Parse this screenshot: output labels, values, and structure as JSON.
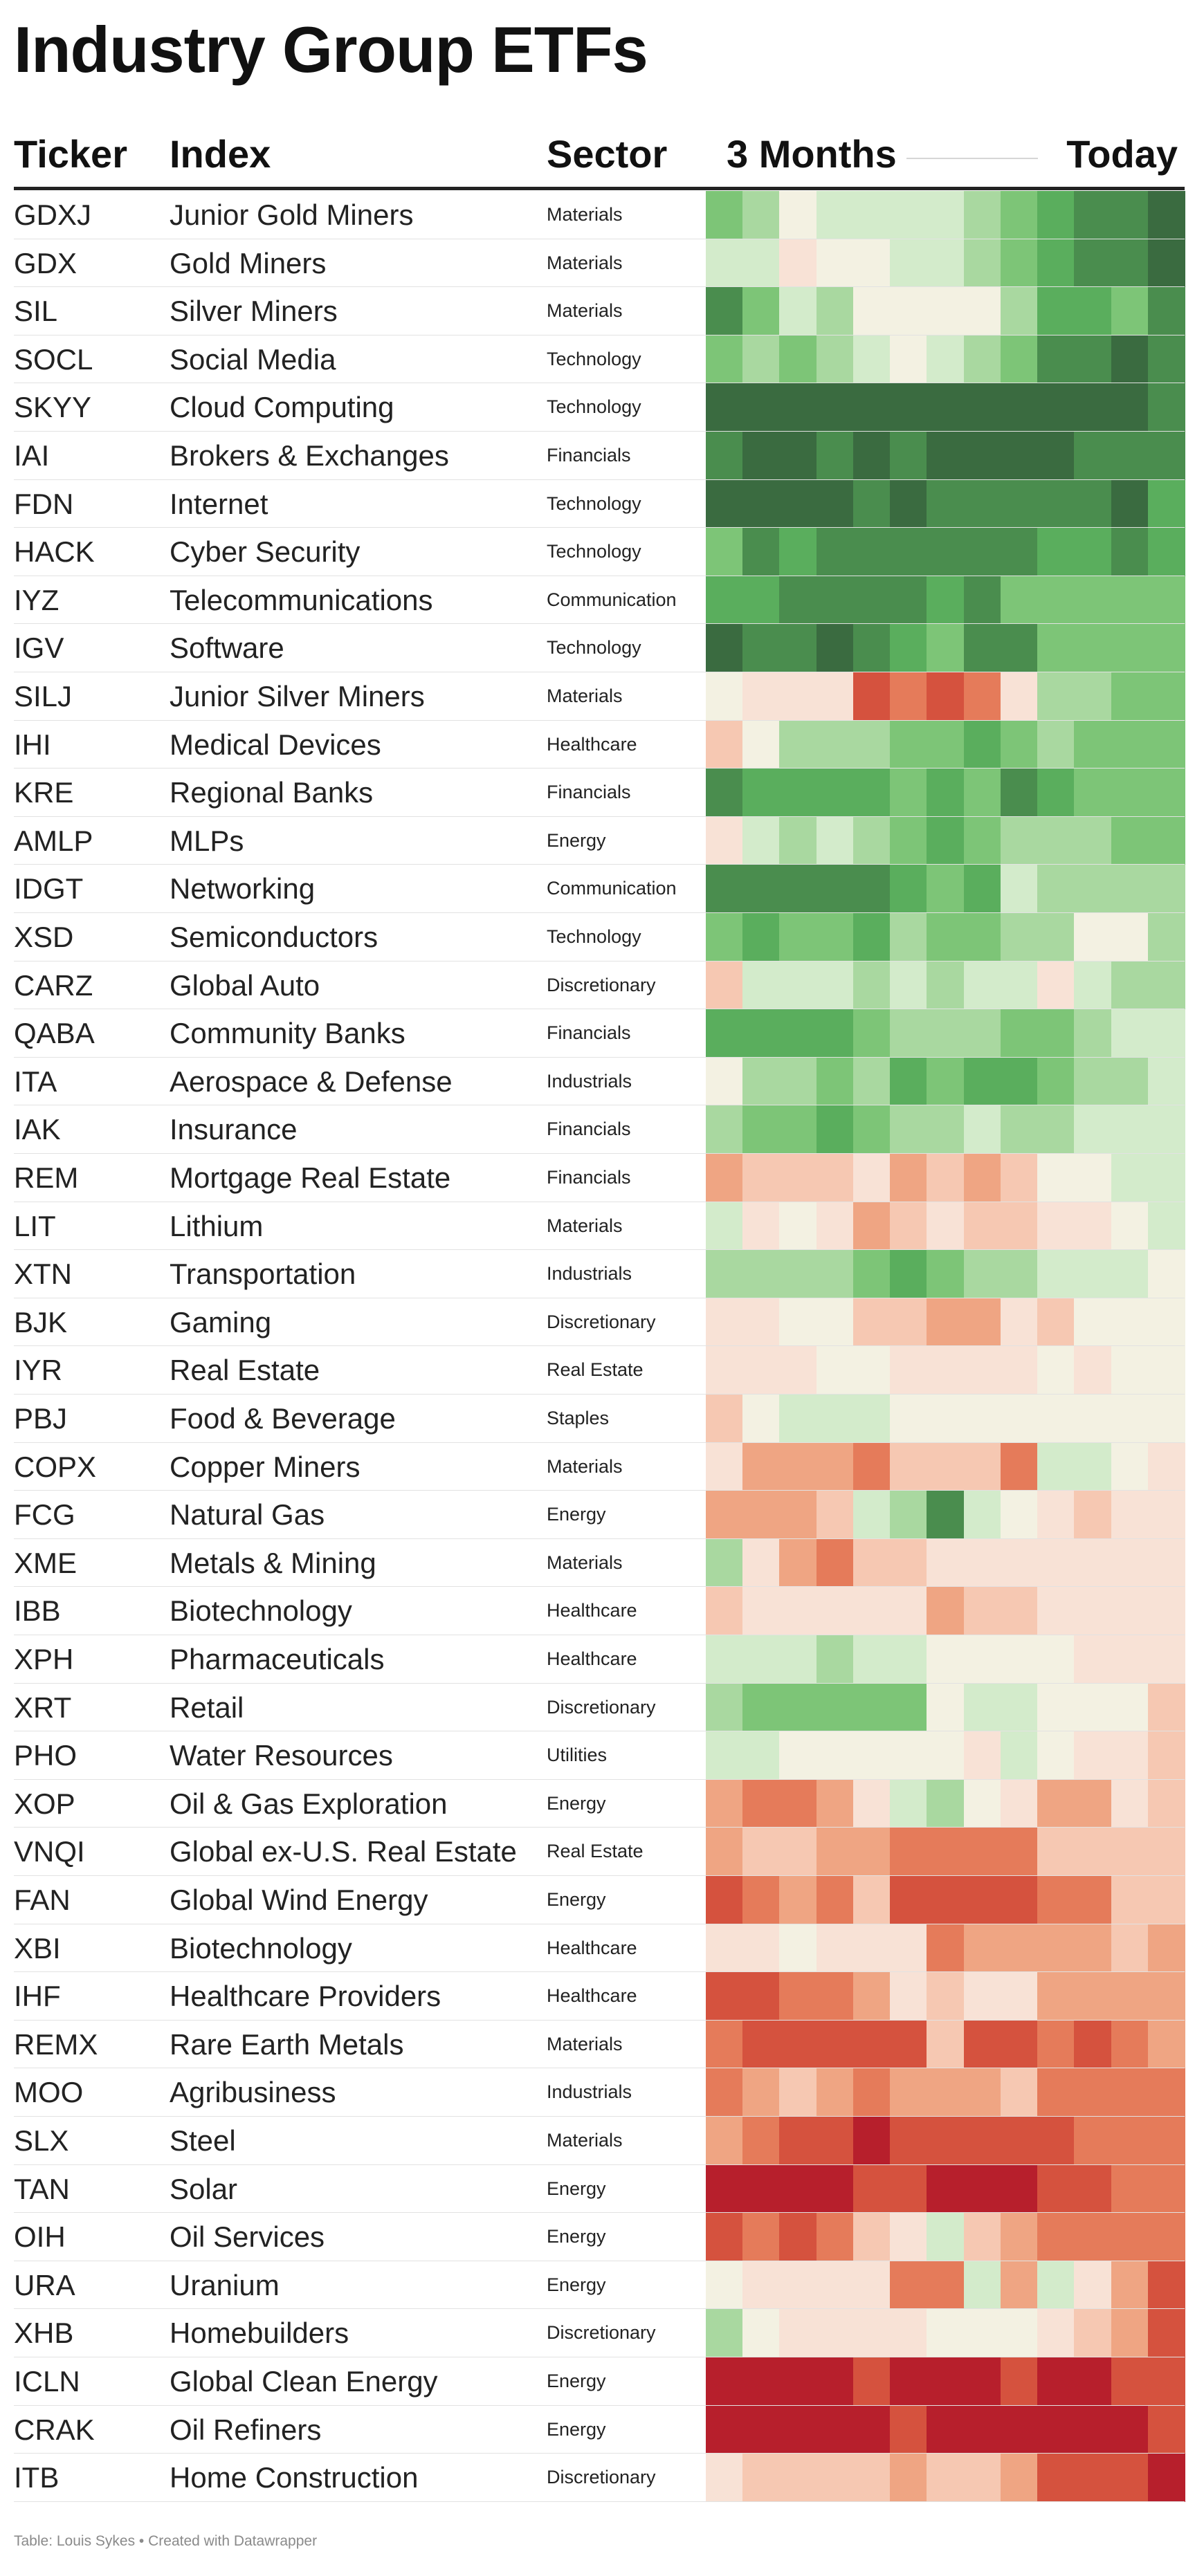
{
  "title": "Industry Group ETFs",
  "columns": {
    "ticker": "Ticker",
    "index": "Index",
    "sector": "Sector",
    "heat_start": "3 Months",
    "heat_end": "Today"
  },
  "footer": "Table: Louis Sykes • Created with Datawrapper",
  "colors": {
    "G5": "#3a6b40",
    "G4": "#4a8d4e",
    "G3": "#5aae5d",
    "G2": "#7dc577",
    "G1": "#a9d8a0",
    "G0": "#d3ebcb",
    "N": "#f3f1e2",
    "R0": "#f8e2d6",
    "R1": "#f6c8b2",
    "R2": "#efa583",
    "R3": "#e57b5a",
    "R4": "#d5523e",
    "R5": "#b71f2c"
  },
  "chart_data": {
    "type": "heatmap",
    "title": "Industry Group ETFs",
    "scale": [
      "G5",
      "G4",
      "G3",
      "G2",
      "G1",
      "G0",
      "N",
      "R0",
      "R1",
      "R2",
      "R3",
      "R4",
      "R5"
    ],
    "rows": [
      {
        "ticker": "GDXJ",
        "index": "Junior Gold Miners",
        "sector": "Materials",
        "cells": [
          "G2",
          "G1",
          "N",
          "G0",
          "G0",
          "G0",
          "G0",
          "G1",
          "G2",
          "G3",
          "G4",
          "G4",
          "G5"
        ]
      },
      {
        "ticker": "GDX",
        "index": "Gold Miners",
        "sector": "Materials",
        "cells": [
          "G0",
          "G0",
          "R0",
          "N",
          "N",
          "G0",
          "G0",
          "G1",
          "G2",
          "G3",
          "G4",
          "G4",
          "G5"
        ]
      },
      {
        "ticker": "SIL",
        "index": "Silver Miners",
        "sector": "Materials",
        "cells": [
          "G4",
          "G2",
          "G0",
          "G1",
          "N",
          "N",
          "N",
          "N",
          "G1",
          "G3",
          "G3",
          "G2",
          "G4"
        ]
      },
      {
        "ticker": "SOCL",
        "index": "Social Media",
        "sector": "Technology",
        "cells": [
          "G2",
          "G1",
          "G2",
          "G1",
          "G0",
          "N",
          "G0",
          "G1",
          "G2",
          "G4",
          "G4",
          "G5",
          "G4"
        ]
      },
      {
        "ticker": "SKYY",
        "index": "Cloud Computing",
        "sector": "Technology",
        "cells": [
          "G5",
          "G5",
          "G5",
          "G5",
          "G5",
          "G5",
          "G5",
          "G5",
          "G5",
          "G5",
          "G5",
          "G5",
          "G4"
        ]
      },
      {
        "ticker": "IAI",
        "index": "Brokers & Exchanges",
        "sector": "Financials",
        "cells": [
          "G4",
          "G5",
          "G5",
          "G4",
          "G5",
          "G4",
          "G5",
          "G5",
          "G5",
          "G5",
          "G4",
          "G4",
          "G4"
        ]
      },
      {
        "ticker": "FDN",
        "index": "Internet",
        "sector": "Technology",
        "cells": [
          "G5",
          "G5",
          "G5",
          "G5",
          "G4",
          "G5",
          "G4",
          "G4",
          "G4",
          "G4",
          "G4",
          "G5",
          "G3"
        ]
      },
      {
        "ticker": "HACK",
        "index": "Cyber Security",
        "sector": "Technology",
        "cells": [
          "G2",
          "G4",
          "G3",
          "G4",
          "G4",
          "G4",
          "G4",
          "G4",
          "G4",
          "G3",
          "G3",
          "G4",
          "G3"
        ]
      },
      {
        "ticker": "IYZ",
        "index": "Telecommunications",
        "sector": "Communication",
        "cells": [
          "G3",
          "G3",
          "G4",
          "G4",
          "G4",
          "G4",
          "G3",
          "G4",
          "G2",
          "G2",
          "G2",
          "G2",
          "G2"
        ]
      },
      {
        "ticker": "IGV",
        "index": "Software",
        "sector": "Technology",
        "cells": [
          "G5",
          "G4",
          "G4",
          "G5",
          "G4",
          "G3",
          "G2",
          "G4",
          "G4",
          "G2",
          "G2",
          "G2",
          "G2"
        ]
      },
      {
        "ticker": "SILJ",
        "index": "Junior Silver Miners",
        "sector": "Materials",
        "cells": [
          "N",
          "R0",
          "R0",
          "R0",
          "R4",
          "R3",
          "R4",
          "R3",
          "R0",
          "G1",
          "G1",
          "G2",
          "G2"
        ]
      },
      {
        "ticker": "IHI",
        "index": "Medical Devices",
        "sector": "Healthcare",
        "cells": [
          "R1",
          "N",
          "G1",
          "G1",
          "G1",
          "G2",
          "G2",
          "G3",
          "G2",
          "G1",
          "G2",
          "G2",
          "G2"
        ]
      },
      {
        "ticker": "KRE",
        "index": "Regional Banks",
        "sector": "Financials",
        "cells": [
          "G4",
          "G3",
          "G3",
          "G3",
          "G3",
          "G2",
          "G3",
          "G2",
          "G4",
          "G3",
          "G2",
          "G2",
          "G2"
        ]
      },
      {
        "ticker": "AMLP",
        "index": "MLPs",
        "sector": "Energy",
        "cells": [
          "R0",
          "G0",
          "G1",
          "G0",
          "G1",
          "G2",
          "G3",
          "G2",
          "G1",
          "G1",
          "G1",
          "G2",
          "G2"
        ]
      },
      {
        "ticker": "IDGT",
        "index": "Networking",
        "sector": "Communication",
        "cells": [
          "G4",
          "G4",
          "G4",
          "G4",
          "G4",
          "G3",
          "G2",
          "G3",
          "G0",
          "G1",
          "G1",
          "G1",
          "G1"
        ]
      },
      {
        "ticker": "XSD",
        "index": "Semiconductors",
        "sector": "Technology",
        "cells": [
          "G2",
          "G3",
          "G2",
          "G2",
          "G3",
          "G1",
          "G2",
          "G2",
          "G1",
          "G1",
          "N",
          "N",
          "G1"
        ]
      },
      {
        "ticker": "CARZ",
        "index": "Global Auto",
        "sector": "Discretionary",
        "cells": [
          "R1",
          "G0",
          "G0",
          "G0",
          "G1",
          "G0",
          "G1",
          "G0",
          "G0",
          "R0",
          "G0",
          "G1",
          "G1"
        ]
      },
      {
        "ticker": "QABA",
        "index": "Community Banks",
        "sector": "Financials",
        "cells": [
          "G3",
          "G3",
          "G3",
          "G3",
          "G2",
          "G1",
          "G1",
          "G1",
          "G2",
          "G2",
          "G1",
          "G0",
          "G0"
        ]
      },
      {
        "ticker": "ITA",
        "index": "Aerospace & Defense",
        "sector": "Industrials",
        "cells": [
          "N",
          "G1",
          "G1",
          "G2",
          "G1",
          "G3",
          "G2",
          "G3",
          "G3",
          "G2",
          "G1",
          "G1",
          "G0"
        ]
      },
      {
        "ticker": "IAK",
        "index": "Insurance",
        "sector": "Financials",
        "cells": [
          "G1",
          "G2",
          "G2",
          "G3",
          "G2",
          "G1",
          "G1",
          "G0",
          "G1",
          "G1",
          "G0",
          "G0",
          "G0"
        ]
      },
      {
        "ticker": "REM",
        "index": "Mortgage Real Estate",
        "sector": "Financials",
        "cells": [
          "R2",
          "R1",
          "R1",
          "R1",
          "R0",
          "R2",
          "R1",
          "R2",
          "R1",
          "N",
          "N",
          "G0",
          "G0"
        ]
      },
      {
        "ticker": "LIT",
        "index": "Lithium",
        "sector": "Materials",
        "cells": [
          "G0",
          "R0",
          "N",
          "R0",
          "R2",
          "R1",
          "R0",
          "R1",
          "R1",
          "R0",
          "R0",
          "N",
          "G0"
        ]
      },
      {
        "ticker": "XTN",
        "index": "Transportation",
        "sector": "Industrials",
        "cells": [
          "G1",
          "G1",
          "G1",
          "G1",
          "G2",
          "G3",
          "G2",
          "G1",
          "G1",
          "G0",
          "G0",
          "G0",
          "N"
        ]
      },
      {
        "ticker": "BJK",
        "index": "Gaming",
        "sector": "Discretionary",
        "cells": [
          "R0",
          "R0",
          "N",
          "N",
          "R1",
          "R1",
          "R2",
          "R2",
          "R0",
          "R1",
          "N",
          "N",
          "N"
        ]
      },
      {
        "ticker": "IYR",
        "index": "Real Estate",
        "sector": "Real Estate",
        "cells": [
          "R0",
          "R0",
          "R0",
          "N",
          "N",
          "R0",
          "R0",
          "R0",
          "R0",
          "N",
          "R0",
          "N",
          "N"
        ]
      },
      {
        "ticker": "PBJ",
        "index": "Food & Beverage",
        "sector": "Staples",
        "cells": [
          "R1",
          "N",
          "G0",
          "G0",
          "G0",
          "N",
          "N",
          "N",
          "N",
          "N",
          "N",
          "N",
          "N"
        ]
      },
      {
        "ticker": "COPX",
        "index": "Copper Miners",
        "sector": "Materials",
        "cells": [
          "R0",
          "R2",
          "R2",
          "R2",
          "R3",
          "R1",
          "R1",
          "R1",
          "R3",
          "G0",
          "G0",
          "N",
          "R0"
        ]
      },
      {
        "ticker": "FCG",
        "index": "Natural Gas",
        "sector": "Energy",
        "cells": [
          "R2",
          "R2",
          "R2",
          "R1",
          "G0",
          "G1",
          "G4",
          "G0",
          "N",
          "R0",
          "R1",
          "R0",
          "R0"
        ]
      },
      {
        "ticker": "XME",
        "index": "Metals & Mining",
        "sector": "Materials",
        "cells": [
          "G1",
          "R0",
          "R2",
          "R3",
          "R1",
          "R1",
          "R0",
          "R0",
          "R0",
          "R0",
          "R0",
          "R0",
          "R0"
        ]
      },
      {
        "ticker": "IBB",
        "index": "Biotechnology",
        "sector": "Healthcare",
        "cells": [
          "R1",
          "R0",
          "R0",
          "R0",
          "R0",
          "R0",
          "R2",
          "R1",
          "R1",
          "R0",
          "R0",
          "R0",
          "R0"
        ]
      },
      {
        "ticker": "XPH",
        "index": "Pharmaceuticals",
        "sector": "Healthcare",
        "cells": [
          "G0",
          "G0",
          "G0",
          "G1",
          "G0",
          "G0",
          "N",
          "N",
          "N",
          "N",
          "R0",
          "R0",
          "R0"
        ]
      },
      {
        "ticker": "XRT",
        "index": "Retail",
        "sector": "Discretionary",
        "cells": [
          "G1",
          "G2",
          "G2",
          "G2",
          "G2",
          "G2",
          "N",
          "G0",
          "G0",
          "N",
          "N",
          "N",
          "R1"
        ]
      },
      {
        "ticker": "PHO",
        "index": "Water Resources",
        "sector": "Utilities",
        "cells": [
          "G0",
          "G0",
          "N",
          "N",
          "N",
          "N",
          "N",
          "R0",
          "G0",
          "N",
          "R0",
          "R0",
          "R1"
        ]
      },
      {
        "ticker": "XOP",
        "index": "Oil & Gas Exploration",
        "sector": "Energy",
        "cells": [
          "R2",
          "R3",
          "R3",
          "R2",
          "R0",
          "G0",
          "G1",
          "N",
          "R0",
          "R2",
          "R2",
          "R0",
          "R1"
        ]
      },
      {
        "ticker": "VNQI",
        "index": "Global ex-U.S. Real Estate",
        "sector": "Real Estate",
        "cells": [
          "R2",
          "R1",
          "R1",
          "R2",
          "R2",
          "R3",
          "R3",
          "R3",
          "R3",
          "R1",
          "R1",
          "R1",
          "R1"
        ]
      },
      {
        "ticker": "FAN",
        "index": "Global Wind Energy",
        "sector": "Energy",
        "cells": [
          "R4",
          "R3",
          "R2",
          "R3",
          "R1",
          "R4",
          "R4",
          "R4",
          "R4",
          "R3",
          "R3",
          "R1",
          "R1"
        ]
      },
      {
        "ticker": "XBI",
        "index": "Biotechnology",
        "sector": "Healthcare",
        "cells": [
          "R0",
          "R0",
          "N",
          "R0",
          "R0",
          "R0",
          "R3",
          "R2",
          "R2",
          "R2",
          "R2",
          "R1",
          "R2"
        ]
      },
      {
        "ticker": "IHF",
        "index": "Healthcare Providers",
        "sector": "Healthcare",
        "cells": [
          "R4",
          "R4",
          "R3",
          "R3",
          "R2",
          "R0",
          "R1",
          "R0",
          "R0",
          "R2",
          "R2",
          "R2",
          "R2"
        ]
      },
      {
        "ticker": "REMX",
        "index": "Rare Earth Metals",
        "sector": "Materials",
        "cells": [
          "R3",
          "R4",
          "R4",
          "R4",
          "R4",
          "R4",
          "R1",
          "R4",
          "R4",
          "R3",
          "R4",
          "R3",
          "R2"
        ]
      },
      {
        "ticker": "MOO",
        "index": "Agribusiness",
        "sector": "Industrials",
        "cells": [
          "R3",
          "R2",
          "R1",
          "R2",
          "R3",
          "R2",
          "R2",
          "R2",
          "R1",
          "R3",
          "R3",
          "R3",
          "R3"
        ]
      },
      {
        "ticker": "SLX",
        "index": "Steel",
        "sector": "Materials",
        "cells": [
          "R2",
          "R3",
          "R4",
          "R4",
          "R5",
          "R4",
          "R4",
          "R4",
          "R4",
          "R4",
          "R3",
          "R3",
          "R3"
        ]
      },
      {
        "ticker": "TAN",
        "index": "Solar",
        "sector": "Energy",
        "cells": [
          "R5",
          "R5",
          "R5",
          "R5",
          "R4",
          "R4",
          "R5",
          "R5",
          "R5",
          "R4",
          "R4",
          "R3",
          "R3"
        ]
      },
      {
        "ticker": "OIH",
        "index": "Oil Services",
        "sector": "Energy",
        "cells": [
          "R4",
          "R3",
          "R4",
          "R3",
          "R1",
          "R0",
          "G0",
          "R1",
          "R2",
          "R3",
          "R3",
          "R3",
          "R3"
        ]
      },
      {
        "ticker": "URA",
        "index": "Uranium",
        "sector": "Energy",
        "cells": [
          "N",
          "R0",
          "R0",
          "R0",
          "R0",
          "R3",
          "R3",
          "G0",
          "R2",
          "G0",
          "R0",
          "R2",
          "R4"
        ]
      },
      {
        "ticker": "XHB",
        "index": "Homebuilders",
        "sector": "Discretionary",
        "cells": [
          "G1",
          "N",
          "R0",
          "R0",
          "R0",
          "R0",
          "N",
          "N",
          "N",
          "R0",
          "R1",
          "R2",
          "R4"
        ]
      },
      {
        "ticker": "ICLN",
        "index": "Global Clean Energy",
        "sector": "Energy",
        "cells": [
          "R5",
          "R5",
          "R5",
          "R5",
          "R4",
          "R5",
          "R5",
          "R5",
          "R4",
          "R5",
          "R5",
          "R4",
          "R4"
        ]
      },
      {
        "ticker": "CRAK",
        "index": "Oil Refiners",
        "sector": "Energy",
        "cells": [
          "R5",
          "R5",
          "R5",
          "R5",
          "R5",
          "R4",
          "R5",
          "R5",
          "R5",
          "R5",
          "R5",
          "R5",
          "R4"
        ]
      },
      {
        "ticker": "ITB",
        "index": "Home Construction",
        "sector": "Discretionary",
        "cells": [
          "R0",
          "R1",
          "R1",
          "R1",
          "R1",
          "R2",
          "R1",
          "R1",
          "R2",
          "R4",
          "R4",
          "R4",
          "R5"
        ]
      }
    ]
  }
}
